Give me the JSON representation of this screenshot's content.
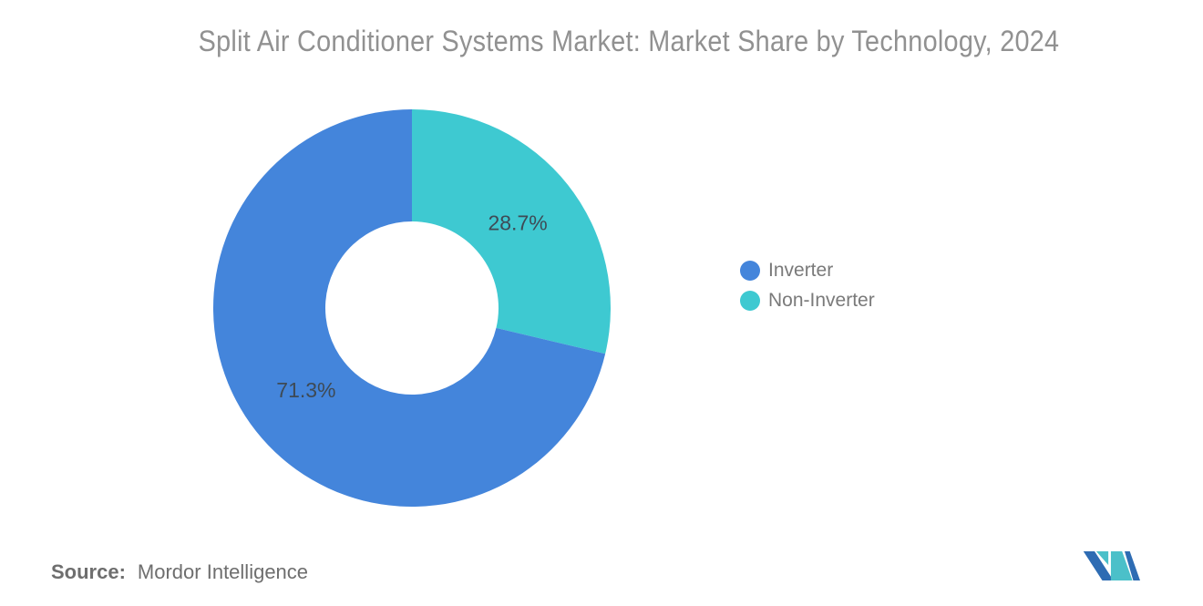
{
  "title": "Split Air Conditioner Systems Market: Market Share by Technology, 2024",
  "chart_data": {
    "type": "pie",
    "subtype": "donut",
    "title": "Split Air Conditioner Systems Market: Market Share by Technology, 2024",
    "categories": [
      "Inverter",
      "Non-Inverter"
    ],
    "values": [
      71.3,
      28.7
    ],
    "unit": "%",
    "legend_position": "right",
    "start_angle_deg_clockwise_from_top": 0,
    "slices": [
      {
        "label": "Inverter",
        "value": 71.3,
        "display": "71.3%",
        "color": "#4485DB"
      },
      {
        "label": "Non-Inverter",
        "value": 28.7,
        "display": "28.7%",
        "color": "#3EC9D1"
      }
    ]
  },
  "legend": {
    "items": [
      {
        "label": "Inverter",
        "color": "#4485DB"
      },
      {
        "label": "Non-Inverter",
        "color": "#3EC9D1"
      }
    ]
  },
  "source": {
    "label": "Source:",
    "value": "Mordor Intelligence"
  },
  "logo": {
    "name": "mordor-intelligence-logo",
    "blue": "#2E6CB3",
    "teal": "#4BC0C9"
  },
  "colors": {
    "background": "#FFFFFF",
    "title_text": "#919191",
    "slice_label_text": "#3E4A55",
    "legend_text": "#7A7A7A",
    "source_text": "#6E6E6E"
  }
}
